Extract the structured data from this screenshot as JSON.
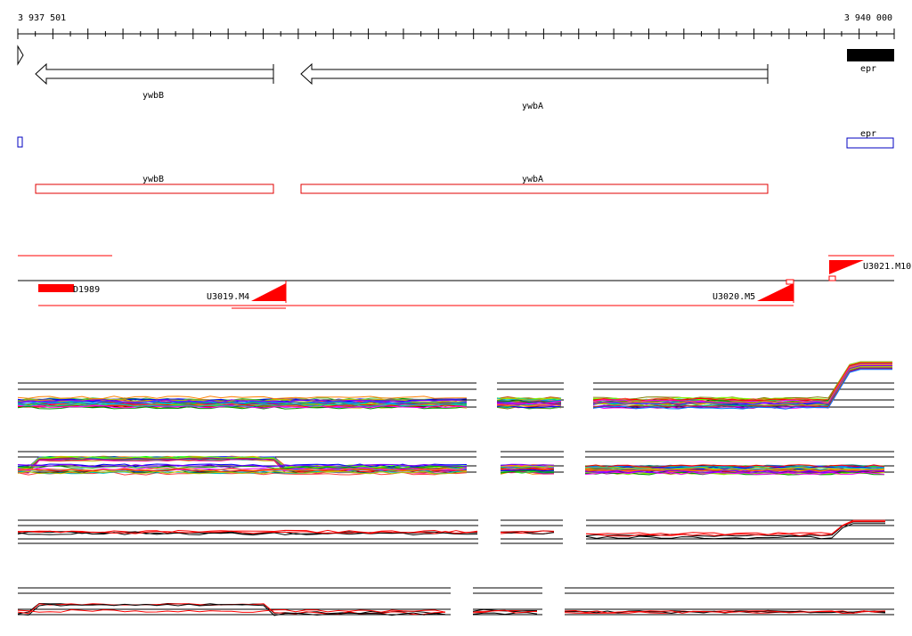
{
  "ruler": {
    "start_label": "3 937 501",
    "end_label": "3 940 000",
    "start_bp": 3937501,
    "end_bp": 3940000
  },
  "genes": [
    {
      "name": "ywbB",
      "start": 3937521,
      "end": 3937791,
      "strand": "-"
    },
    {
      "name": "ywbA",
      "start": 3937817,
      "end": 3938357,
      "strand": "-"
    },
    {
      "name": "epr",
      "start": 3938432,
      "end": 3940000,
      "strand": "+"
    }
  ],
  "cds_labels": {
    "ywbB": "ywbB",
    "ywbA": "ywbA",
    "epr": "epr"
  },
  "segments": {
    "d1989": "D1989",
    "u3019": "U3019.M4",
    "u3020": "U3020.M5",
    "u3021": "U3021.M10"
  },
  "colors": {
    "gene_outline": "#000000",
    "cds_minus": "#e00000",
    "cds_plus": "#0000c0",
    "segment": "#ff0000",
    "trace_primary": "#000000",
    "trace_secondary": "#ff0000"
  }
}
